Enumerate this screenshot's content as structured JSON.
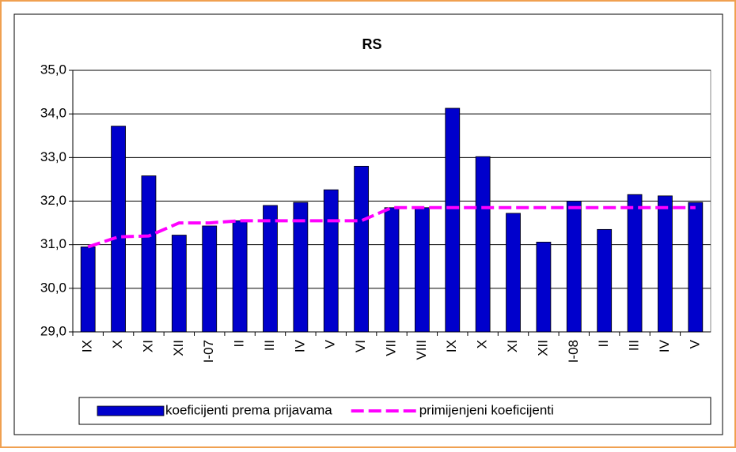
{
  "chart_data": {
    "type": "bar-line",
    "title": "RS",
    "categories": [
      "IX",
      "X",
      "XI",
      "XII",
      "I-07",
      "II",
      "III",
      "IV",
      "V",
      "VI",
      "VII",
      "VIII",
      "IX",
      "X",
      "XI",
      "XII",
      "I-08",
      "II",
      "III",
      "IV",
      "V"
    ],
    "series": [
      {
        "name": "koeficijenti prema prijavama",
        "type": "bar",
        "color": "#0000cc",
        "values": [
          30.95,
          33.72,
          32.58,
          31.22,
          31.43,
          31.55,
          31.9,
          31.97,
          32.26,
          32.8,
          31.85,
          31.85,
          34.13,
          33.02,
          31.72,
          31.06,
          32.0,
          31.35,
          32.15,
          32.12,
          31.97
        ]
      },
      {
        "name": "primijenjeni koeficijenti",
        "type": "line",
        "color": "#ff00ff",
        "values": [
          30.95,
          31.18,
          31.2,
          31.5,
          31.5,
          31.55,
          31.55,
          31.55,
          31.55,
          31.55,
          31.85,
          31.85,
          31.85,
          31.85,
          31.85,
          31.85,
          31.85,
          31.85,
          31.85,
          31.85,
          31.85
        ]
      }
    ],
    "ylim": [
      29,
      35
    ],
    "yticks": [
      {
        "value": 29,
        "label": "29,0"
      },
      {
        "value": 30,
        "label": "30,0"
      },
      {
        "value": 31,
        "label": "31,0"
      },
      {
        "value": 32,
        "label": "32,0"
      },
      {
        "value": 33,
        "label": "33,0"
      },
      {
        "value": 34,
        "label": "34,0"
      },
      {
        "value": 35,
        "label": "35,0"
      }
    ],
    "grid": true,
    "legend": "bottom"
  }
}
